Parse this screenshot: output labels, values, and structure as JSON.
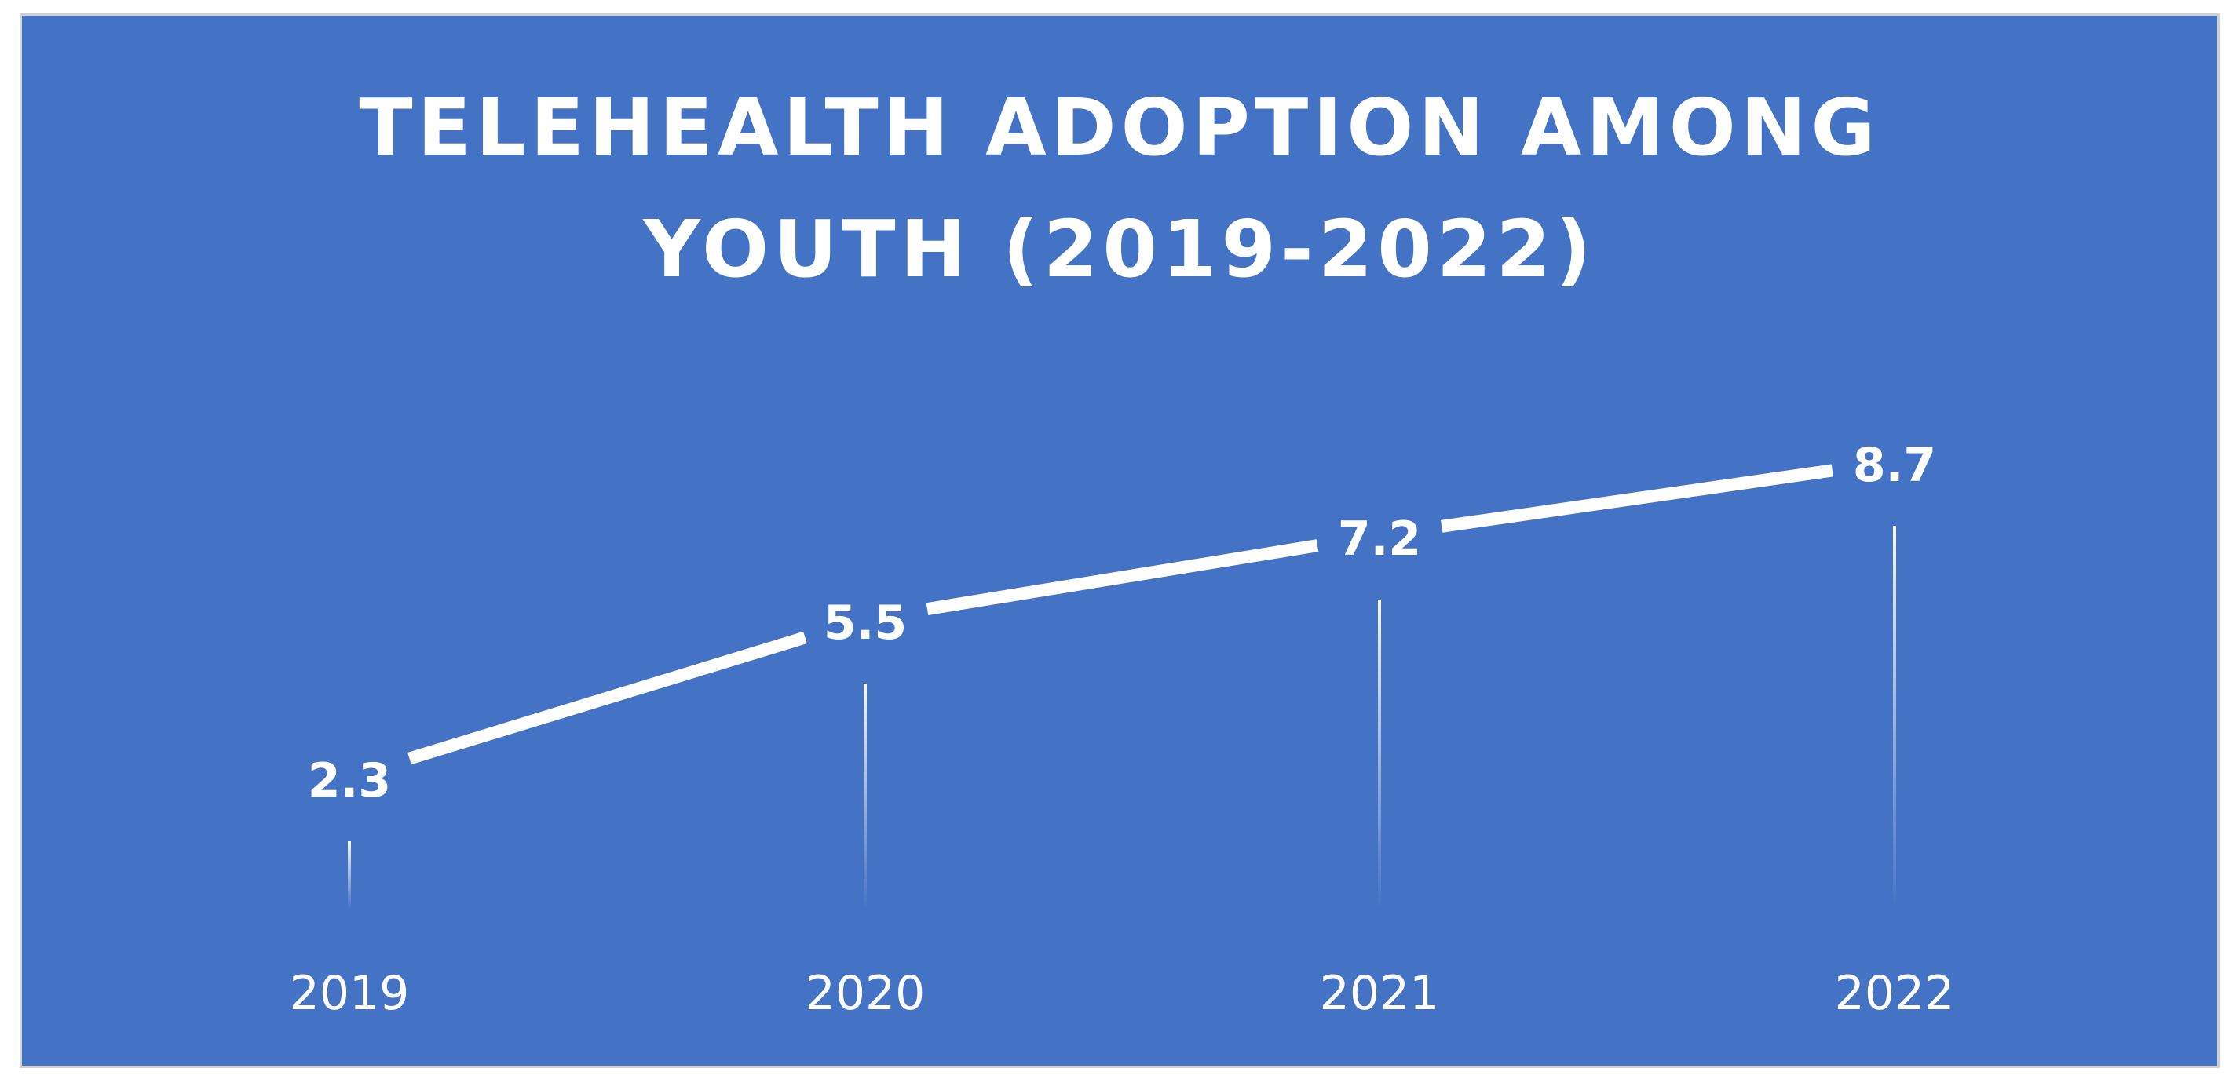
{
  "chart_data": {
    "type": "line",
    "title_lines": [
      "TELEHEALTH ADOPTION AMONG",
      "YOUTH (2019-2022)"
    ],
    "categories": [
      "2019",
      "2020",
      "2021",
      "2022"
    ],
    "series": [
      {
        "name": "Telehealth Adoption",
        "values": [
          2.3,
          5.5,
          7.2,
          8.7
        ],
        "labels": [
          "2.3",
          "5.5",
          "7.2",
          "8.7"
        ]
      }
    ],
    "xlabel": "",
    "ylabel": "",
    "ylim": [
      0,
      10
    ],
    "grid": false,
    "legend": "none",
    "colors": {
      "background": "#4472C4",
      "line": "#FFFFFF",
      "text": "#FFFFFF",
      "frame": "#D0D0D0"
    }
  }
}
